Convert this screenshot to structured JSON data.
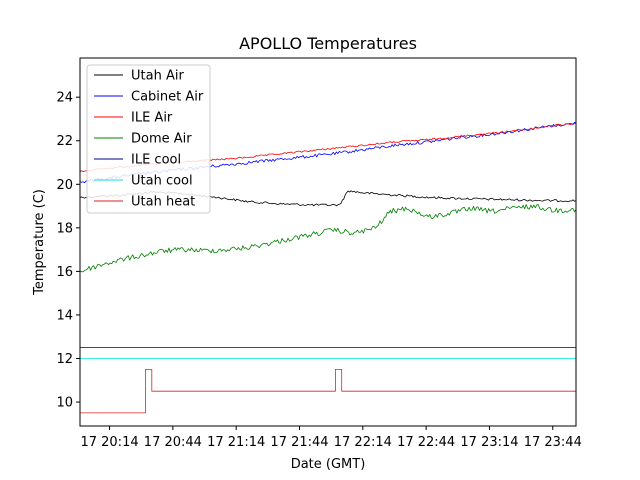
{
  "chart_data": {
    "type": "line",
    "title": "APOLLO Temperatures",
    "xlabel": "Date (GMT)",
    "ylabel": "Temperature (C)",
    "x_unit": "minutes",
    "xlim": [
      "20:00",
      "23:55"
    ],
    "ylim": [
      8.9,
      25.8
    ],
    "grid": false,
    "legend_position": "top-left",
    "x_ticks": [
      {
        "time": "20:14",
        "label": "17 20:14"
      },
      {
        "time": "20:44",
        "label": "17 20:44"
      },
      {
        "time": "21:14",
        "label": "17 21:14"
      },
      {
        "time": "21:44",
        "label": "17 21:44"
      },
      {
        "time": "22:14",
        "label": "17 22:14"
      },
      {
        "time": "22:44",
        "label": "17 22:44"
      },
      {
        "time": "23:14",
        "label": "17 23:14"
      },
      {
        "time": "23:44",
        "label": "17 23:44"
      }
    ],
    "y_ticks": [
      {
        "value": 10,
        "label": "10"
      },
      {
        "value": 12,
        "label": "12"
      },
      {
        "value": 14,
        "label": "14"
      },
      {
        "value": 16,
        "label": "16"
      },
      {
        "value": 18,
        "label": "18"
      },
      {
        "value": 20,
        "label": "20"
      },
      {
        "value": 22,
        "label": "22"
      },
      {
        "value": 24,
        "label": "24"
      }
    ],
    "series": [
      {
        "name": "Utah Air",
        "color": "#000000",
        "points": [
          [
            "20:00",
            19.4
          ],
          [
            "20:20",
            19.5
          ],
          [
            "20:35",
            19.65
          ],
          [
            "20:50",
            19.55
          ],
          [
            "21:05",
            19.4
          ],
          [
            "21:20",
            19.2
          ],
          [
            "21:35",
            19.1
          ],
          [
            "21:50",
            19.05
          ],
          [
            "22:03",
            19.05
          ],
          [
            "22:07",
            19.7
          ],
          [
            "22:15",
            19.6
          ],
          [
            "22:30",
            19.5
          ],
          [
            "22:45",
            19.4
          ],
          [
            "23:00",
            19.35
          ],
          [
            "23:20",
            19.3
          ],
          [
            "23:40",
            19.25
          ],
          [
            "23:55",
            19.25
          ]
        ]
      },
      {
        "name": "Cabinet Air",
        "color": "#0000ff",
        "points": [
          [
            "20:00",
            20.1
          ],
          [
            "20:15",
            20.3
          ],
          [
            "20:30",
            20.5
          ],
          [
            "20:45",
            20.65
          ],
          [
            "21:00",
            20.8
          ],
          [
            "21:15",
            20.95
          ],
          [
            "21:30",
            21.1
          ],
          [
            "21:45",
            21.25
          ],
          [
            "22:00",
            21.4
          ],
          [
            "22:15",
            21.6
          ],
          [
            "22:30",
            21.8
          ],
          [
            "22:45",
            21.95
          ],
          [
            "23:00",
            22.15
          ],
          [
            "23:15",
            22.3
          ],
          [
            "23:30",
            22.5
          ],
          [
            "23:45",
            22.7
          ],
          [
            "23:55",
            22.8
          ]
        ]
      },
      {
        "name": "ILE Air",
        "color": "#ff0000",
        "points": [
          [
            "20:00",
            20.6
          ],
          [
            "20:15",
            20.75
          ],
          [
            "20:30",
            20.9
          ],
          [
            "20:45",
            21.0
          ],
          [
            "21:00",
            21.1
          ],
          [
            "21:15",
            21.2
          ],
          [
            "21:30",
            21.35
          ],
          [
            "21:45",
            21.5
          ],
          [
            "22:00",
            21.65
          ],
          [
            "22:15",
            21.8
          ],
          [
            "22:30",
            21.95
          ],
          [
            "22:45",
            22.05
          ],
          [
            "23:00",
            22.2
          ],
          [
            "23:15",
            22.35
          ],
          [
            "23:30",
            22.5
          ],
          [
            "23:45",
            22.7
          ],
          [
            "23:55",
            22.8
          ]
        ]
      },
      {
        "name": "Dome Air",
        "color": "#008000",
        "points": [
          [
            "20:00",
            16.0
          ],
          [
            "20:10",
            16.3
          ],
          [
            "20:20",
            16.55
          ],
          [
            "20:30",
            16.75
          ],
          [
            "20:40",
            16.95
          ],
          [
            "20:50",
            17.0
          ],
          [
            "21:00",
            16.95
          ],
          [
            "21:10",
            17.0
          ],
          [
            "21:20",
            17.1
          ],
          [
            "21:30",
            17.3
          ],
          [
            "21:40",
            17.5
          ],
          [
            "21:50",
            17.7
          ],
          [
            "22:00",
            17.9
          ],
          [
            "22:10",
            17.75
          ],
          [
            "22:20",
            18.0
          ],
          [
            "22:27",
            18.75
          ],
          [
            "22:35",
            18.9
          ],
          [
            "22:45",
            18.5
          ],
          [
            "22:55",
            18.65
          ],
          [
            "23:05",
            18.9
          ],
          [
            "23:15",
            18.75
          ],
          [
            "23:25",
            18.9
          ],
          [
            "23:35",
            19.0
          ],
          [
            "23:45",
            18.8
          ],
          [
            "23:55",
            18.85
          ]
        ]
      },
      {
        "name": "ILE cool",
        "color": "#00008b",
        "points": [
          [
            "20:00",
            12.5
          ],
          [
            "23:55",
            12.5
          ]
        ]
      },
      {
        "name": "Utah cool",
        "color": "#00e5ee",
        "points": [
          [
            "20:00",
            12.0
          ],
          [
            "23:55",
            12.0
          ]
        ]
      },
      {
        "name": "Utah heat",
        "color": "#dd2222",
        "points": [
          [
            "20:00",
            9.5
          ],
          [
            "20:31",
            9.5
          ],
          [
            "20:31",
            11.5
          ],
          [
            "20:34",
            11.5
          ],
          [
            "20:34",
            10.5
          ],
          [
            "22:01",
            10.5
          ],
          [
            "22:01",
            11.5
          ],
          [
            "22:04",
            11.5
          ],
          [
            "22:04",
            10.5
          ],
          [
            "23:55",
            10.5
          ]
        ]
      }
    ]
  }
}
